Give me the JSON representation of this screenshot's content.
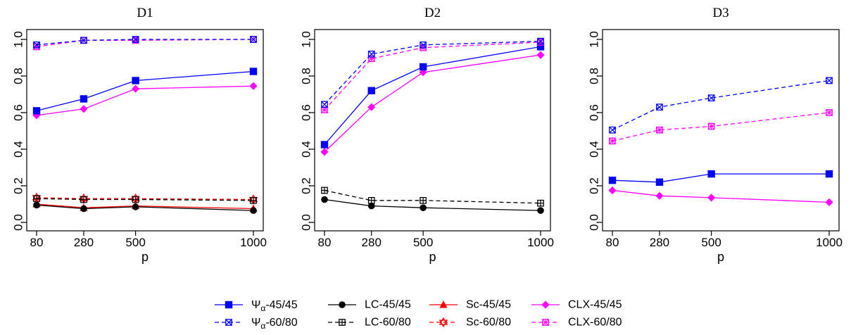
{
  "chart_data": {
    "type": "line",
    "x": [
      80,
      280,
      500,
      1000
    ],
    "xlabel": "p",
    "ylabel": "",
    "ylim": [
      0,
      1
    ],
    "xticks": [
      "80",
      "280",
      "500",
      "1000"
    ],
    "yticks": [
      "0.0",
      "0.2",
      "0.4",
      "0.6",
      "0.8",
      "1.0"
    ],
    "grid": false,
    "legend_position": "bottom-center",
    "legend": [
      {
        "key": "psi45",
        "prefix": "Ψ",
        "sub": "α",
        "suffix": "-45/45",
        "color": "#0000ff",
        "dash": false,
        "marker": "square-filled"
      },
      {
        "key": "lc45",
        "label": "LC-45/45",
        "color": "#000000",
        "dash": false,
        "marker": "circle-filled"
      },
      {
        "key": "sc45",
        "label": "Sc-45/45",
        "color": "#ff0000",
        "dash": false,
        "marker": "triangle-filled"
      },
      {
        "key": "clx45",
        "label": "CLX-45/45",
        "color": "#ff00ff",
        "dash": false,
        "marker": "diamond-filled"
      },
      {
        "key": "psi60",
        "prefix": "Ψ",
        "sub": "α",
        "suffix": "-60/80",
        "color": "#0000ff",
        "dash": true,
        "marker": "square-cross"
      },
      {
        "key": "lc60",
        "label": "LC-60/80",
        "color": "#000000",
        "dash": true,
        "marker": "square-plus"
      },
      {
        "key": "sc60",
        "label": "Sc-60/80",
        "color": "#ff0000",
        "dash": true,
        "marker": "star-david"
      },
      {
        "key": "clx60",
        "label": "CLX-60/80",
        "color": "#ff00ff",
        "dash": true,
        "marker": "square-asterisk"
      }
    ],
    "panels": [
      {
        "title": "D1",
        "series": [
          {
            "key": "sc60",
            "values": [
              0.135,
              0.13,
              0.13,
              0.125
            ]
          },
          {
            "key": "lc60",
            "values": [
              0.13,
              0.125,
              0.125,
              0.12
            ]
          },
          {
            "key": "sc45",
            "values": [
              0.1,
              0.08,
              0.09,
              0.075
            ]
          },
          {
            "key": "lc45",
            "values": [
              0.095,
              0.075,
              0.085,
              0.065
            ]
          },
          {
            "key": "clx45",
            "values": [
              0.585,
              0.62,
              0.73,
              0.745
            ]
          },
          {
            "key": "psi45",
            "values": [
              0.61,
              0.675,
              0.775,
              0.825
            ]
          },
          {
            "key": "clx60",
            "values": [
              0.96,
              0.995,
              0.995,
              1.0
            ]
          },
          {
            "key": "psi60",
            "values": [
              0.97,
              0.995,
              1.0,
              1.0
            ]
          }
        ]
      },
      {
        "title": "D2",
        "series": [
          {
            "key": "lc60",
            "values": [
              0.175,
              0.12,
              0.12,
              0.105
            ]
          },
          {
            "key": "lc45",
            "values": [
              0.125,
              0.09,
              0.08,
              0.065
            ]
          },
          {
            "key": "clx45",
            "values": [
              0.385,
              0.63,
              0.82,
              0.915
            ]
          },
          {
            "key": "psi45",
            "values": [
              0.425,
              0.72,
              0.85,
              0.96
            ]
          },
          {
            "key": "clx60",
            "values": [
              0.615,
              0.895,
              0.955,
              0.985
            ]
          },
          {
            "key": "psi60",
            "values": [
              0.645,
              0.92,
              0.97,
              0.99
            ]
          }
        ]
      },
      {
        "title": "D3",
        "series": [
          {
            "key": "clx45",
            "values": [
              0.175,
              0.145,
              0.135,
              0.11
            ]
          },
          {
            "key": "psi45",
            "values": [
              0.23,
              0.22,
              0.265,
              0.265
            ]
          },
          {
            "key": "clx60",
            "values": [
              0.445,
              0.505,
              0.525,
              0.6
            ]
          },
          {
            "key": "psi60",
            "values": [
              0.505,
              0.63,
              0.68,
              0.775
            ]
          }
        ]
      }
    ]
  }
}
